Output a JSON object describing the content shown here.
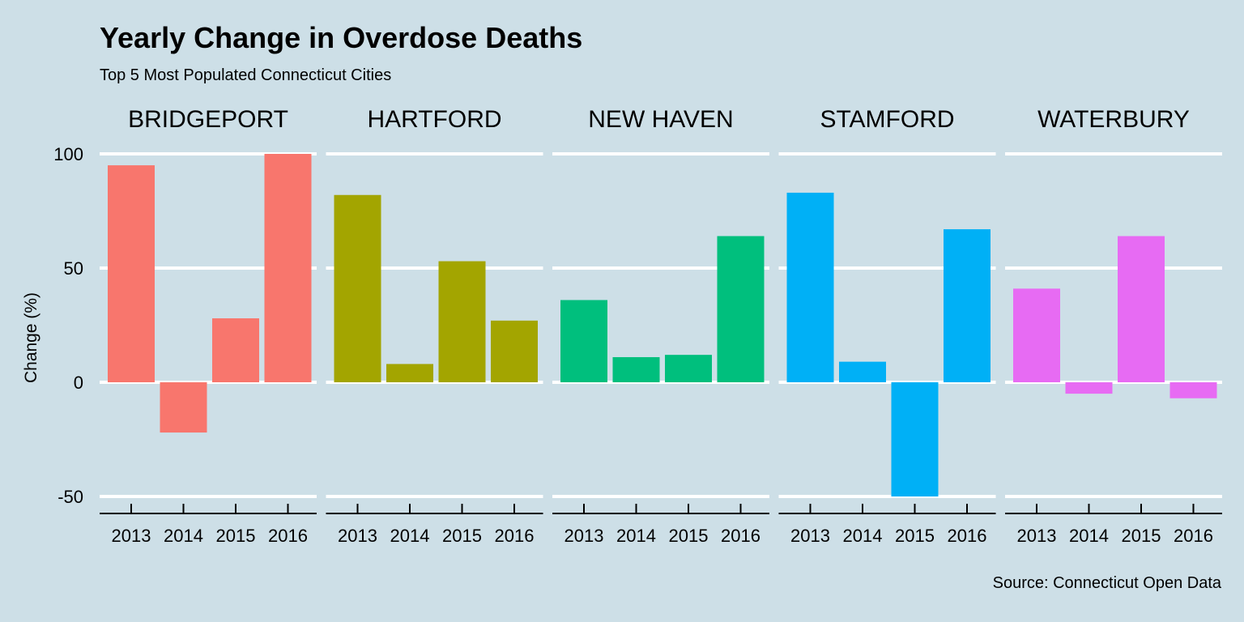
{
  "chart_data": {
    "type": "bar",
    "title": "Yearly Change in Overdose Deaths",
    "subtitle": "Top 5 Most Populated Connecticut Cities",
    "caption": "Source: Connecticut Open Data",
    "xlabel": "",
    "ylabel": "Change (%)",
    "ylim": [
      -50,
      100
    ],
    "yticks": [
      -50,
      0,
      50,
      100
    ],
    "categories": [
      "2013",
      "2014",
      "2015",
      "2016"
    ],
    "grid": "horizontal major only",
    "legend": "none",
    "facets": [
      {
        "name": "BRIDGEPORT",
        "color": "#f8766d",
        "values": [
          95,
          -22,
          28,
          100
        ]
      },
      {
        "name": "HARTFORD",
        "color": "#a3a500",
        "values": [
          82,
          8,
          53,
          27
        ]
      },
      {
        "name": "NEW HAVEN",
        "color": "#00bf7d",
        "values": [
          36,
          11,
          12,
          64
        ]
      },
      {
        "name": "STAMFORD",
        "color": "#00b0f6",
        "values": [
          83,
          9,
          -50,
          67
        ]
      },
      {
        "name": "WATERBURY",
        "color": "#e76bf3",
        "values": [
          41,
          -5,
          64,
          -7
        ]
      }
    ]
  }
}
